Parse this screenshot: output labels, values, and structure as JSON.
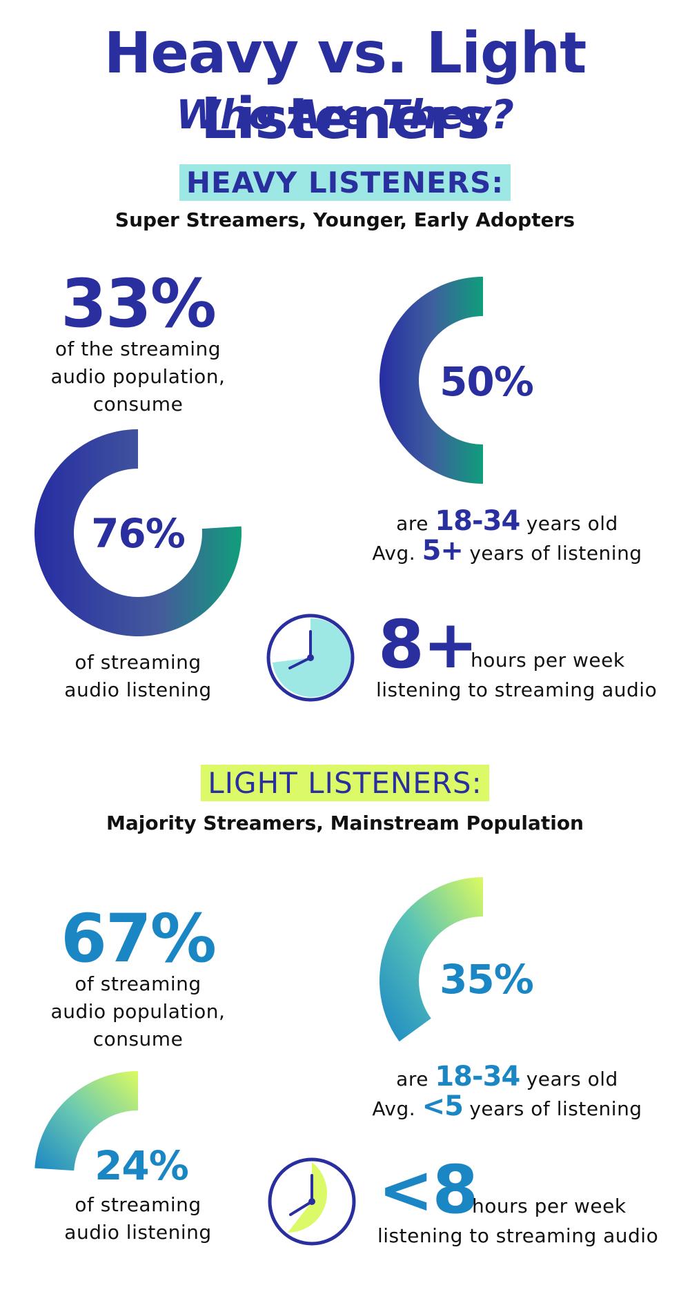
{
  "header": {
    "title": "Heavy vs. Light Listeners",
    "subtitle": "Who Are They?"
  },
  "colors": {
    "navy": "#2a2fa0",
    "teal_green": "#13a47a",
    "light_blue": "#1a86c4",
    "lime": "#dcfa68",
    "aqua": "#9de8e4"
  },
  "heavy": {
    "badge": "HEAVY LISTENERS:",
    "tagline": "Super Streamers, Younger, Early Adopters",
    "population_stat": "33%",
    "population_text": [
      "of the streaming",
      "audio population,",
      "consume"
    ],
    "listening_ring_label": "76%",
    "listening_ring_value": 76,
    "listening_text": [
      "of streaming",
      "audio listening"
    ],
    "age_ring_label": "50%",
    "age_ring_value": 50,
    "age_line": {
      "pre": "are",
      "stat": "18-34",
      "post": "years old"
    },
    "tenure_line": {
      "pre": "Avg.",
      "stat": "5+",
      "post": "years of listening"
    },
    "hours_stat": "8+",
    "hours_text_1": "hours per week",
    "hours_text_2": "listening to streaming audio",
    "clock_icon": "clock-icon"
  },
  "light": {
    "badge": "LIGHT LISTENERS:",
    "tagline": "Majority Streamers, Mainstream Population",
    "population_stat": "67%",
    "population_text": [
      "of streaming",
      "audio population,",
      "consume"
    ],
    "listening_ring_label": "24%",
    "listening_ring_value": 24,
    "listening_text": [
      "of streaming",
      "audio listening"
    ],
    "age_ring_label": "35%",
    "age_ring_value": 35,
    "age_line": {
      "pre": "are",
      "stat": "18-34",
      "post": "years old"
    },
    "tenure_line": {
      "pre": "Avg.",
      "stat": "<5",
      "post": "years of listening"
    },
    "hours_stat": "<8",
    "hours_text_1": "hours per week",
    "hours_text_2": "listening to streaming audio",
    "clock_icon": "clock-icon"
  }
}
